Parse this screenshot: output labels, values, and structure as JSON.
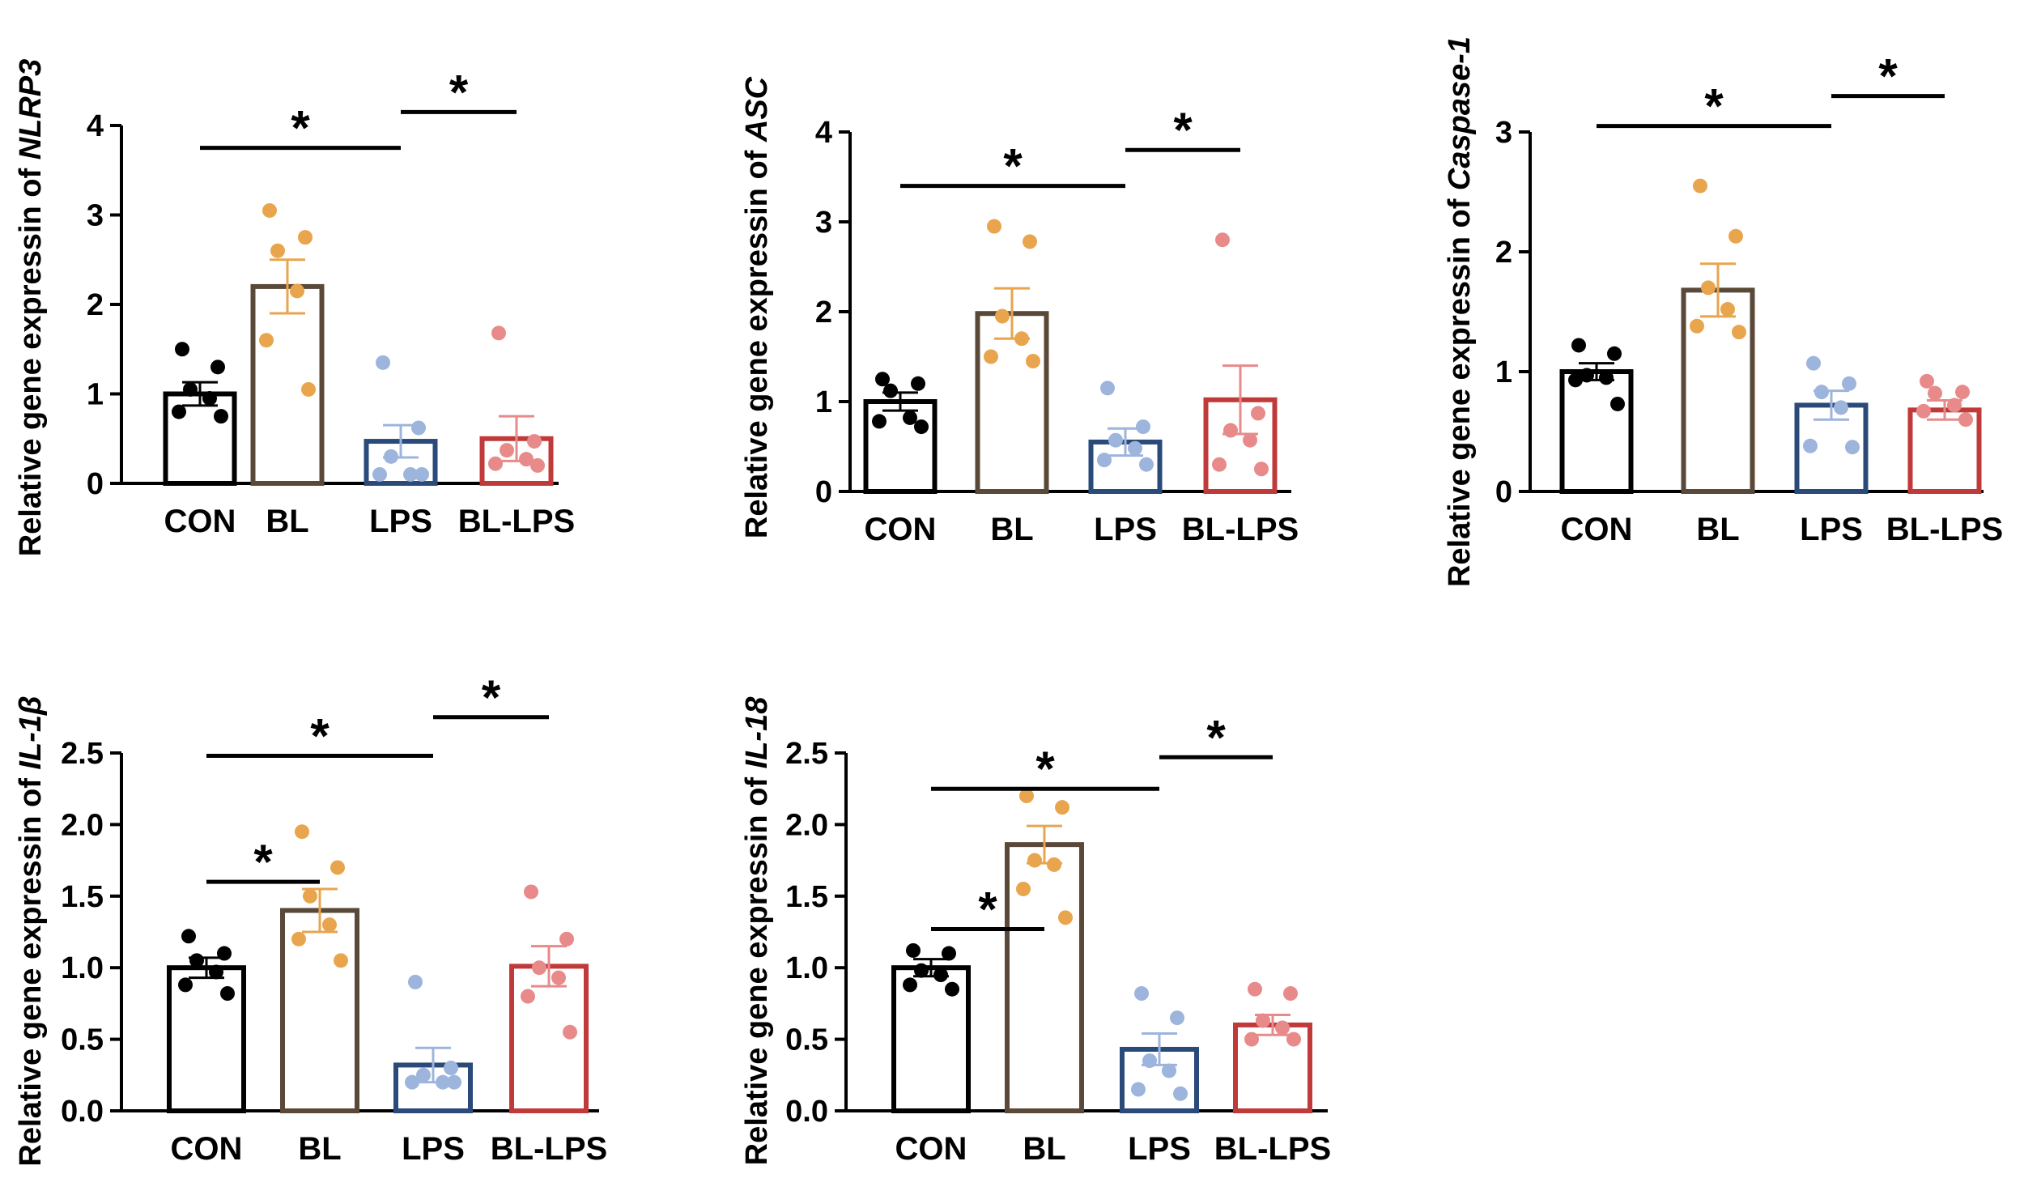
{
  "colors": {
    "CON": "#000000",
    "BL": "#5a4838",
    "LPS": "#2a4a7a",
    "BL-LPS": "#c03a3a",
    "CON_dots": "#000000",
    "BL_dots": "#e8a54e",
    "LPS_dots": "#9db4dc",
    "BL-LPS_dots": "#e88a8a"
  },
  "chart_data": [
    {
      "type": "bar",
      "ylabel_prefix": "Relative gene expressin of",
      "gene": "NLRP3",
      "categories": [
        "CON",
        "BL",
        "LPS",
        "BL-LPS"
      ],
      "values": [
        1.0,
        2.2,
        0.47,
        0.5
      ],
      "errors": [
        0.13,
        0.3,
        0.18,
        0.25
      ],
      "points": [
        [
          1.5,
          1.3,
          1.05,
          0.95,
          0.8,
          0.75
        ],
        [
          3.05,
          2.75,
          2.6,
          2.15,
          1.6,
          1.05
        ],
        [
          1.35,
          0.62,
          0.3,
          0.1,
          0.1,
          0.1
        ],
        [
          1.68,
          0.47,
          0.37,
          0.27,
          0.22,
          0.2
        ]
      ],
      "ylim": [
        0,
        4
      ],
      "yticks": [
        "0",
        "1",
        "2",
        "3",
        "4"
      ],
      "significance": [
        {
          "from": 0,
          "to": 2,
          "y": 3.75,
          "label": "*"
        },
        {
          "from": 2,
          "to": 3,
          "y": 4.15,
          "label": "*"
        }
      ]
    },
    {
      "type": "bar",
      "ylabel_prefix": "Relative gene expressin of",
      "gene": "ASC",
      "categories": [
        "CON",
        "BL",
        "LPS",
        "BL-LPS"
      ],
      "values": [
        1.0,
        1.98,
        0.55,
        1.02
      ],
      "errors": [
        0.1,
        0.28,
        0.15,
        0.38
      ],
      "points": [
        [
          1.25,
          1.2,
          1.12,
          0.82,
          0.78,
          0.72
        ],
        [
          2.95,
          2.78,
          1.95,
          1.7,
          1.5,
          1.45
        ],
        [
          1.15,
          0.72,
          0.57,
          0.48,
          0.35,
          0.3
        ],
        [
          2.8,
          0.87,
          0.68,
          0.57,
          0.3,
          0.25
        ]
      ],
      "ylim": [
        0,
        4
      ],
      "yticks": [
        "0",
        "1",
        "2",
        "3",
        "4"
      ],
      "significance": [
        {
          "from": 0,
          "to": 2,
          "y": 3.4,
          "label": "*"
        },
        {
          "from": 2,
          "to": 3,
          "y": 3.8,
          "label": "*"
        }
      ]
    },
    {
      "type": "bar",
      "ylabel_prefix": "Relative gene expressin of",
      "gene": "Caspase-1",
      "categories": [
        "CON",
        "BL",
        "LPS",
        "BL-LPS"
      ],
      "values": [
        1.0,
        1.68,
        0.72,
        0.68
      ],
      "errors": [
        0.07,
        0.22,
        0.12,
        0.08
      ],
      "points": [
        [
          1.22,
          1.15,
          0.97,
          0.95,
          0.93,
          0.73
        ],
        [
          2.55,
          2.13,
          1.7,
          1.52,
          1.38,
          1.33
        ],
        [
          1.07,
          0.9,
          0.83,
          0.7,
          0.38,
          0.37
        ],
        [
          0.92,
          0.83,
          0.82,
          0.72,
          0.67,
          0.6
        ]
      ],
      "ylim": [
        0,
        3
      ],
      "yticks": [
        "0",
        "1",
        "2",
        "3"
      ],
      "significance": [
        {
          "from": 0,
          "to": 2,
          "y": 3.05,
          "label": "*"
        },
        {
          "from": 2,
          "to": 3,
          "y": 3.3,
          "label": "*"
        }
      ]
    },
    {
      "type": "bar",
      "ylabel_prefix": "Relative gene expressin of",
      "gene": "IL-1β",
      "categories": [
        "CON",
        "BL",
        "LPS",
        "BL-LPS"
      ],
      "values": [
        1.0,
        1.4,
        0.32,
        1.01
      ],
      "errors": [
        0.07,
        0.15,
        0.12,
        0.14
      ],
      "points": [
        [
          1.22,
          1.1,
          1.05,
          0.97,
          0.88,
          0.82
        ],
        [
          1.95,
          1.7,
          1.5,
          1.3,
          1.2,
          1.05
        ],
        [
          0.9,
          0.3,
          0.25,
          0.2,
          0.2,
          0.2
        ],
        [
          1.53,
          1.2,
          1.0,
          0.93,
          0.8,
          0.55
        ]
      ],
      "ylim": [
        0,
        2.5
      ],
      "yticks": [
        "0.0",
        "0.5",
        "1.0",
        "1.5",
        "2.0",
        "2.5"
      ],
      "significance": [
        {
          "from": 0,
          "to": 1,
          "y": 1.6,
          "label": "*"
        },
        {
          "from": 0,
          "to": 2,
          "y": 2.48,
          "label": "*"
        },
        {
          "from": 2,
          "to": 3,
          "y": 2.75,
          "label": "*"
        }
      ]
    },
    {
      "type": "bar",
      "ylabel_prefix": "Relative gene expressin of",
      "gene": "IL-18",
      "categories": [
        "CON",
        "BL",
        "LPS",
        "BL-LPS"
      ],
      "values": [
        1.0,
        1.86,
        0.43,
        0.6
      ],
      "errors": [
        0.06,
        0.13,
        0.11,
        0.07
      ],
      "points": [
        [
          1.12,
          1.1,
          0.98,
          0.95,
          0.88,
          0.85
        ],
        [
          2.2,
          2.12,
          1.75,
          1.72,
          1.55,
          1.35
        ],
        [
          0.82,
          0.65,
          0.35,
          0.28,
          0.15,
          0.12
        ],
        [
          0.85,
          0.82,
          0.63,
          0.58,
          0.5,
          0.5
        ]
      ],
      "ylim": [
        0,
        2.5
      ],
      "yticks": [
        "0.0",
        "0.5",
        "1.0",
        "1.5",
        "2.0",
        "2.5"
      ],
      "significance": [
        {
          "from": 0,
          "to": 1,
          "y": 1.27,
          "label": "*"
        },
        {
          "from": 0,
          "to": 2,
          "y": 2.25,
          "label": "*"
        },
        {
          "from": 2,
          "to": 3,
          "y": 2.47,
          "label": "*"
        }
      ]
    }
  ]
}
